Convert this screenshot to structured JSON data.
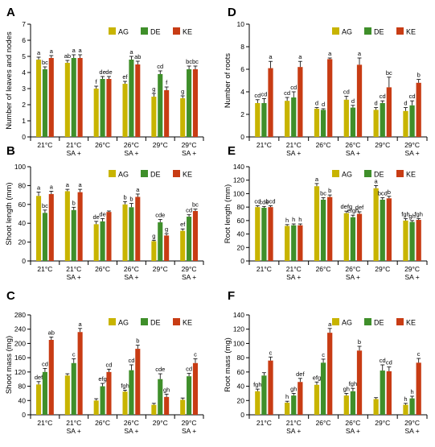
{
  "colors": {
    "AG": "#c8b400",
    "DE": "#3f8f2a",
    "KE": "#c83c14"
  },
  "legend_labels": [
    "AG",
    "DE",
    "KE"
  ],
  "chart_data": [
    {
      "panel": "A",
      "type": "bar",
      "ylabel": "Number of leaves and nodes",
      "ylim": [
        0,
        7
      ],
      "yticks": [
        0,
        1,
        2,
        3,
        4,
        5,
        6,
        7
      ],
      "categories": [
        "21°C",
        "21°C\nSA +",
        "26°C",
        "26°C\nSA +",
        "29°C",
        "29°C\nSA +"
      ],
      "series": [
        {
          "name": "AG",
          "values": [
            4.8,
            4.6,
            3.0,
            3.3,
            2.5,
            2.4
          ],
          "errors": [
            0.15,
            0.15,
            0.15,
            0.15,
            0.2,
            0.15
          ],
          "labels": [
            "a",
            "ab",
            "f",
            "ef",
            "g",
            "g"
          ]
        },
        {
          "name": "DE",
          "values": [
            4.2,
            4.9,
            3.6,
            4.8,
            3.9,
            4.2
          ],
          "errors": [
            0.15,
            0.2,
            0.15,
            0.2,
            0.2,
            0.2
          ],
          "labels": [
            "bc",
            "a",
            "de",
            "a",
            "cd",
            "bc"
          ]
        },
        {
          "name": "KE",
          "values": [
            4.9,
            4.9,
            3.6,
            4.5,
            2.9,
            4.2
          ],
          "errors": [
            0.15,
            0.2,
            0.15,
            0.2,
            0.2,
            0.2
          ],
          "labels": [
            "a",
            "a",
            "de",
            "ab",
            "f",
            "bc"
          ]
        }
      ]
    },
    {
      "panel": "B",
      "type": "bar",
      "ylabel": "Shoot length (mm)",
      "ylim": [
        0,
        100
      ],
      "yticks": [
        0,
        20,
        40,
        60,
        80,
        100
      ],
      "categories": [
        "21°C",
        "21°C\nSA +",
        "26°C",
        "26°C\nSA +",
        "29°C",
        "29°C\nSA +"
      ],
      "series": [
        {
          "name": "AG",
          "values": [
            69,
            74,
            39,
            60,
            21,
            32
          ],
          "errors": [
            4,
            2,
            3,
            3,
            1,
            2
          ],
          "labels": [
            "a",
            "a",
            "de",
            "b",
            "g",
            "ef"
          ]
        },
        {
          "name": "DE",
          "values": [
            51,
            54,
            42,
            57,
            41,
            47
          ],
          "errors": [
            3,
            3,
            3,
            4,
            3,
            2
          ],
          "labels": [
            "bc",
            "b",
            "de",
            "b",
            "cde",
            "cd"
          ]
        },
        {
          "name": "KE",
          "values": [
            71,
            73,
            52,
            68,
            27,
            53
          ],
          "errors": [
            3,
            3,
            1,
            3,
            2,
            2
          ],
          "labels": [
            "a",
            "a",
            "",
            "a",
            "g",
            "bc"
          ]
        }
      ]
    },
    {
      "panel": "C",
      "type": "bar",
      "ylabel": "Shoot mass (mg)",
      "ylim": [
        0,
        280
      ],
      "yticks": [
        0,
        40,
        80,
        120,
        160,
        200,
        240,
        280
      ],
      "categories": [
        "21°C",
        "21°C\nSA +",
        "26°C",
        "26°C\nSA +",
        "29°C",
        "29°C\nSA +"
      ],
      "series": [
        {
          "name": "AG",
          "values": [
            85,
            110,
            40,
            65,
            28,
            42
          ],
          "errors": [
            8,
            5,
            5,
            4,
            4,
            5
          ],
          "labels": [
            "def",
            "",
            "",
            "fgh",
            "",
            ""
          ]
        },
        {
          "name": "DE",
          "values": [
            120,
            145,
            80,
            125,
            100,
            108
          ],
          "errors": [
            10,
            12,
            8,
            15,
            15,
            8
          ],
          "labels": [
            "cd",
            "c",
            "efg",
            "cd",
            "cde",
            "cd"
          ]
        },
        {
          "name": "KE",
          "values": [
            210,
            232,
            120,
            185,
            50,
            145
          ],
          "errors": [
            8,
            10,
            8,
            10,
            8,
            12
          ],
          "labels": [
            "ab",
            "a",
            "cd",
            "b",
            "gh",
            "c"
          ]
        }
      ]
    },
    {
      "panel": "D",
      "type": "bar",
      "ylabel": "Number of roots",
      "ylim": [
        0,
        10
      ],
      "yticks": [
        0,
        2,
        4,
        6,
        8,
        10
      ],
      "categories": [
        "21°C",
        "21°C\nSA +",
        "26°C",
        "26°C\nSA +",
        "29°C",
        "29°C\nSA +"
      ],
      "series": [
        {
          "name": "AG",
          "values": [
            3.0,
            3.2,
            2.5,
            3.3,
            2.4,
            2.3
          ],
          "errors": [
            0.3,
            0.3,
            0.1,
            0.3,
            0.2,
            0.3
          ],
          "labels": [
            "cd",
            "cd",
            "d",
            "cd",
            "d",
            "d"
          ]
        },
        {
          "name": "DE",
          "values": [
            3.0,
            3.5,
            2.4,
            2.6,
            3.0,
            2.8
          ],
          "errors": [
            0.4,
            0.5,
            0.1,
            0.2,
            0.2,
            0.4
          ],
          "labels": [
            "cd",
            "cd",
            "d",
            "d",
            "cd",
            "cd"
          ]
        },
        {
          "name": "KE",
          "values": [
            6.1,
            6.2,
            6.9,
            6.4,
            4.4,
            4.8
          ],
          "errors": [
            0.6,
            0.5,
            0.1,
            0.6,
            0.9,
            0.3
          ],
          "labels": [
            "a",
            "a",
            "a",
            "a",
            "bc",
            "b"
          ]
        }
      ]
    },
    {
      "panel": "E",
      "type": "bar",
      "ylabel": "Root length (mm)",
      "ylim": [
        0,
        140
      ],
      "yticks": [
        0,
        20,
        40,
        60,
        80,
        100,
        120,
        140
      ],
      "categories": [
        "21°C",
        "21°C\nSA +",
        "26°C",
        "26°C\nSA +",
        "29°C",
        "29°C\nSA +"
      ],
      "series": [
        {
          "name": "AG",
          "values": [
            80,
            52,
            111,
            71,
            108,
            60
          ],
          "errors": [
            2,
            2,
            4,
            3,
            4,
            3
          ],
          "labels": [
            "cd",
            "h",
            "a",
            "defg",
            "a",
            "fgh"
          ]
        },
        {
          "name": "DE",
          "values": [
            79,
            53,
            91,
            65,
            91,
            58
          ],
          "errors": [
            2,
            2,
            3,
            3,
            3,
            2
          ],
          "labels": [
            "cde",
            "h",
            "bc",
            "efgh",
            "bcd",
            "gh"
          ]
        },
        {
          "name": "KE",
          "values": [
            80,
            53,
            95,
            70,
            93,
            61
          ],
          "errors": [
            2,
            2,
            3,
            3,
            3,
            2
          ],
          "labels": [
            "bcd",
            "h",
            "b",
            "def",
            "b",
            "fgh"
          ]
        }
      ]
    },
    {
      "panel": "F",
      "type": "bar",
      "ylabel": "Root mass (mg)",
      "ylim": [
        0,
        140
      ],
      "yticks": [
        0,
        20,
        40,
        60,
        80,
        100,
        120,
        140
      ],
      "categories": [
        "21°C",
        "21°C\nSA +",
        "26°C",
        "26°C\nSA +",
        "29°C",
        "29°C\nSA +"
      ],
      "series": [
        {
          "name": "AG",
          "values": [
            33,
            17,
            42,
            27,
            22,
            14
          ],
          "errors": [
            3,
            2,
            4,
            3,
            2,
            2
          ],
          "labels": [
            "fgh",
            "h",
            "efg",
            "gh",
            "",
            "h"
          ]
        },
        {
          "name": "DE",
          "values": [
            55,
            27,
            73,
            33,
            62,
            23
          ],
          "errors": [
            4,
            3,
            5,
            4,
            8,
            3
          ],
          "labels": [
            "",
            "gh",
            "c",
            "fgh",
            "cd",
            "h"
          ]
        },
        {
          "name": "KE",
          "values": [
            76,
            46,
            115,
            90,
            61,
            73
          ],
          "errors": [
            5,
            5,
            6,
            6,
            6,
            6
          ],
          "labels": [
            "c",
            "def",
            "a",
            "b",
            "cd",
            "c"
          ]
        }
      ]
    }
  ]
}
